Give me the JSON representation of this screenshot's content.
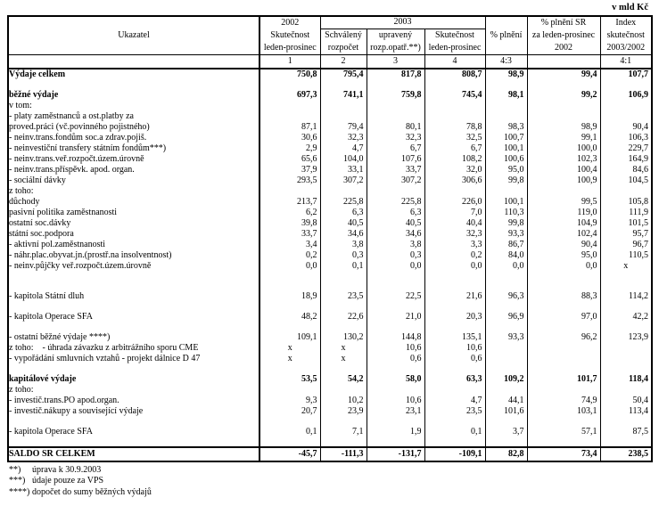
{
  "meta": {
    "units_label": "v mld Kč"
  },
  "table": {
    "header": {
      "indicator": "Ukazatel",
      "col_2002": [
        "2002",
        "Skutečnost",
        "leden-prosinec"
      ],
      "group_2003": "2003",
      "col_schvaleny": [
        "Schválený",
        "rozpočet"
      ],
      "col_upraveny": [
        "upravený",
        "rozp.opatř.**)"
      ],
      "col_skutecnost_2003": [
        "Skutečnost",
        "leden-prosinec"
      ],
      "col_plneni": "% plnění",
      "col_plneni_sr": [
        "% plnění SR",
        "za leden-prosinec",
        "2002"
      ],
      "col_index": [
        "Index",
        "skutečnost",
        "2003/2002"
      ],
      "numbers_row": [
        "",
        "1",
        "2",
        "3",
        "4",
        "4:3",
        "",
        "4:1"
      ]
    },
    "rows": [
      {
        "type": "data",
        "bold": true,
        "indent": 0,
        "label": "Výdaje celkem",
        "values": [
          "750,8",
          "795,4",
          "817,8",
          "808,7",
          "98,9",
          "99,4",
          "107,7"
        ]
      },
      {
        "type": "blank"
      },
      {
        "type": "data",
        "bold": true,
        "indent": 0,
        "label": "běžné výdaje",
        "values": [
          "697,3",
          "741,1",
          "759,8",
          "745,4",
          "98,1",
          "99,2",
          "106,9"
        ]
      },
      {
        "type": "data",
        "indent": 2,
        "label": "v tom:"
      },
      {
        "type": "data",
        "indent": 1,
        "label": "- platy zaměstnanců a ost.platby za"
      },
      {
        "type": "data",
        "indent": 2,
        "label": "proved.práci (vč.povinného pojistného)",
        "values": [
          "87,1",
          "79,4",
          "80,1",
          "78,8",
          "98,3",
          "98,9",
          "90,4"
        ]
      },
      {
        "type": "data",
        "indent": 1,
        "label": "- neinv.trans.fondům soc.a zdrav.pojiš.",
        "values": [
          "30,6",
          "32,3",
          "32,3",
          "32,5",
          "100,7",
          "99,1",
          "106,3"
        ]
      },
      {
        "type": "data",
        "indent": 1,
        "label": "- neinvestiční transfery státním fondům***)",
        "values": [
          "2,9",
          "4,7",
          "6,7",
          "6,7",
          "100,1",
          "100,0",
          "229,7"
        ]
      },
      {
        "type": "data",
        "indent": 1,
        "label": "- neinv.trans.veř.rozpočt.územ.úrovně",
        "values": [
          "65,6",
          "104,0",
          "107,6",
          "108,2",
          "100,6",
          "102,3",
          "164,9"
        ]
      },
      {
        "type": "data",
        "indent": 1,
        "label": "- neinv.trans.příspěvk. apod. organ.",
        "values": [
          "37,9",
          "33,1",
          "33,7",
          "32,0",
          "95,0",
          "100,4",
          "84,6"
        ]
      },
      {
        "type": "data",
        "indent": 1,
        "label": "- sociální dávky",
        "values": [
          "293,5",
          "307,2",
          "307,2",
          "306,6",
          "99,8",
          "100,9",
          "104,5"
        ]
      },
      {
        "type": "data",
        "indent": 2,
        "label": "z toho:"
      },
      {
        "type": "data",
        "indent": 3,
        "label": "důchody",
        "values": [
          "213,7",
          "225,8",
          "225,8",
          "226,0",
          "100,1",
          "99,5",
          "105,8"
        ]
      },
      {
        "type": "data",
        "indent": 3,
        "label": "pasivní politika zaměstnanosti",
        "values": [
          "6,2",
          "6,3",
          "6,3",
          "7,0",
          "110,3",
          "119,0",
          "111,9"
        ]
      },
      {
        "type": "data",
        "indent": 3,
        "label": "ostatní soc.dávky",
        "values": [
          "39,8",
          "40,5",
          "40,5",
          "40,4",
          "99,8",
          "104,9",
          "101,5"
        ]
      },
      {
        "type": "data",
        "indent": 3,
        "label": "státní soc.podpora",
        "values": [
          "33,7",
          "34,6",
          "34,6",
          "32,3",
          "93,3",
          "102,4",
          "95,7"
        ]
      },
      {
        "type": "data",
        "indent": 1,
        "label": "- aktivní pol.zaměstnanosti",
        "values": [
          "3,4",
          "3,8",
          "3,8",
          "3,3",
          "86,7",
          "90,4",
          "96,7"
        ]
      },
      {
        "type": "data",
        "indent": 1,
        "label": "- náhr.plac.obyvat.jn.(prostř.na insolventnost)",
        "values": [
          "0,2",
          "0,3",
          "0,3",
          "0,2",
          "84,0",
          "95,0",
          "110,5"
        ]
      },
      {
        "type": "data",
        "indent": 1,
        "label": "- neinv.půjčky veř.rozpočt.územ.úrovně",
        "values": [
          "0,0",
          "0,1",
          "0,0",
          "0,0",
          "0,0",
          "0,0",
          "x"
        ]
      },
      {
        "type": "blank-lg"
      },
      {
        "type": "data",
        "indent": 1,
        "label": "- kapitola Státní dluh",
        "values": [
          "18,9",
          "23,5",
          "22,5",
          "21,6",
          "96,3",
          "88,3",
          "114,2"
        ]
      },
      {
        "type": "blank"
      },
      {
        "type": "data",
        "indent": 1,
        "label": "- kapitola Operace SFA",
        "values": [
          "48,2",
          "22,6",
          "21,0",
          "20,3",
          "96,9",
          "97,0",
          "42,2"
        ]
      },
      {
        "type": "blank"
      },
      {
        "type": "data",
        "indent": 1,
        "label": "- ostatní běžné výdaje ****)",
        "values": [
          "109,1",
          "130,2",
          "144,8",
          "135,1",
          "93,3",
          "96,2",
          "123,9"
        ]
      },
      {
        "type": "data",
        "indent": 2,
        "label": "z toho:    - úhrada závazku z arbitrážního sporu CME",
        "values": [
          "x",
          "x",
          "10,6",
          "10,6",
          "",
          "",
          ""
        ]
      },
      {
        "type": "data",
        "indent": 5,
        "label": "- vypořádání smluvních vztahů - projekt dálnice D 47",
        "values": [
          "x",
          "x",
          "0,6",
          "0,6",
          "",
          "",
          ""
        ]
      },
      {
        "type": "blank"
      },
      {
        "type": "data",
        "bold": true,
        "indent": 0,
        "label": "kapitálové výdaje",
        "values": [
          "53,5",
          "54,2",
          "58,0",
          "63,3",
          "109,2",
          "101,7",
          "118,4"
        ]
      },
      {
        "type": "data",
        "indent": 2,
        "label": "z toho:"
      },
      {
        "type": "data",
        "indent": 1,
        "label": "- investič.trans.PO apod.organ.",
        "values": [
          "9,3",
          "10,2",
          "10,6",
          "4,7",
          "44,1",
          "74,9",
          "50,4"
        ]
      },
      {
        "type": "data",
        "indent": 1,
        "label": "- investič.nákupy a související výdaje",
        "values": [
          "20,7",
          "23,9",
          "23,1",
          "23,5",
          "101,6",
          "103,1",
          "113,4"
        ]
      },
      {
        "type": "blank"
      },
      {
        "type": "data",
        "indent": 1,
        "label": "- kapitola Operace SFA",
        "values": [
          "0,1",
          "7,1",
          "1,9",
          "0,1",
          "3,7",
          "57,1",
          "87,5"
        ]
      },
      {
        "type": "blank"
      },
      {
        "type": "saldo",
        "bold": true,
        "indent": 0,
        "label": "SALDO SR CELKEM",
        "values": [
          "-45,7",
          "-111,3",
          "-131,7",
          "-109,1",
          "82,8",
          "73,4",
          "238,5"
        ]
      }
    ]
  },
  "footnotes": [
    {
      "mark": "**)",
      "text": "úprava k 30.9.2003"
    },
    {
      "mark": "***)",
      "text": "údaje pouze za VPS"
    },
    {
      "mark": "****)",
      "text": "dopočet do sumy běžných výdajů"
    }
  ]
}
